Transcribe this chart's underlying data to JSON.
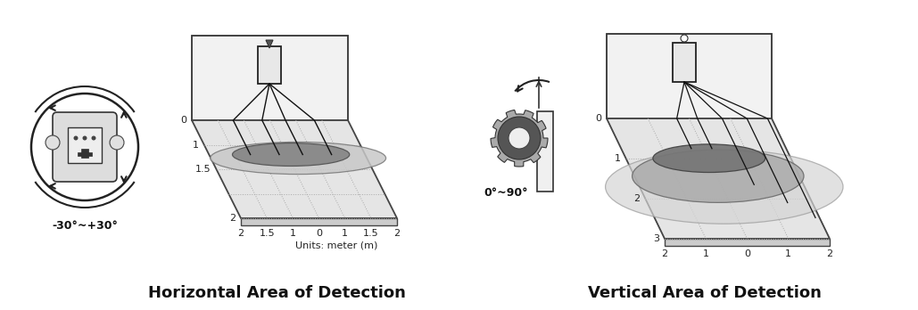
{
  "title_left": "Horizontal Area of Detection",
  "title_right": "Vertical Area of Detection",
  "angle_left": "-30°~+30°",
  "angle_right": "0°~90°",
  "units_label": "Units: meter (m)",
  "h_x_ticks": [
    "2",
    "1.5",
    "1",
    "0",
    "1",
    "1.5",
    "2"
  ],
  "h_y_ticks": [
    "0",
    "1",
    "1.5",
    "2"
  ],
  "v_x_ticks": [
    "2",
    "1",
    "0",
    "1",
    "2"
  ],
  "v_y_ticks": [
    "0",
    "1",
    "2",
    "3"
  ],
  "bg_color": "#ffffff",
  "grid_color": "#bbbbbb",
  "floor_color": "#e8e8e8",
  "ellipse_dark": "#888888",
  "ellipse_light": "#cccccc",
  "line_color": "#111111",
  "wall_color": "#f0f0f0"
}
